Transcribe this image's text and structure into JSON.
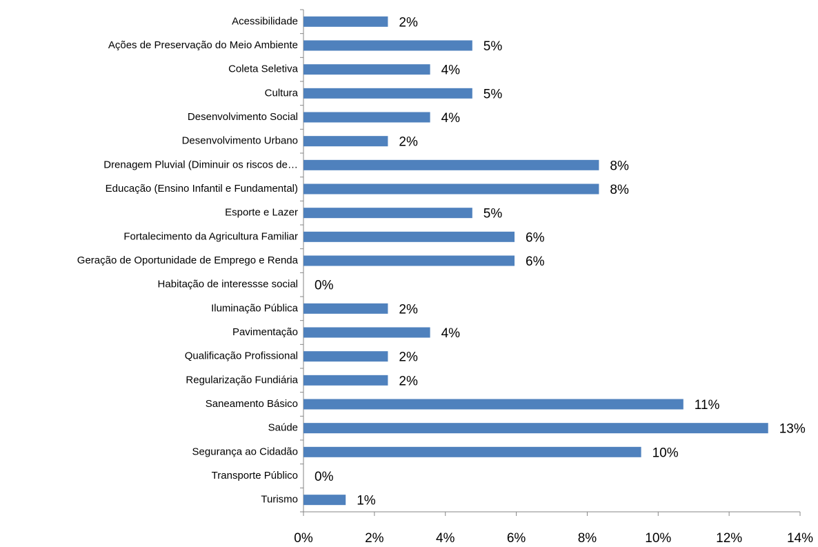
{
  "chart_data": {
    "type": "hbar",
    "categories": [
      "Acessibilidade",
      "Ações de Preservação do Meio Ambiente",
      "Coleta Seletiva",
      "Cultura",
      "Desenvolvimento Social",
      "Desenvolvimento Urbano",
      "Drenagem Pluvial (Diminuir os riscos de…",
      "Educação (Ensino Infantil e Fundamental)",
      "Esporte e Lazer",
      "Fortalecimento da Agricultura Familiar",
      "Geração de Oportunidade de Emprego e Renda",
      "Habitação de interessse social",
      "Iluminação Pública",
      "Pavimentação",
      "Qualificação Profissional",
      "Regularização Fundiária",
      "Saneamento Básico",
      "Saúde",
      "Segurança ao Cidadão",
      "Transporte Público",
      "Turismo"
    ],
    "values": [
      2.38,
      4.76,
      3.57,
      4.76,
      3.57,
      2.38,
      8.33,
      8.33,
      4.76,
      5.95,
      5.95,
      0,
      2.38,
      3.57,
      2.38,
      2.38,
      10.71,
      13.1,
      9.52,
      0,
      1.19
    ],
    "value_labels": [
      "2%",
      "5%",
      "4%",
      "5%",
      "4%",
      "2%",
      "8%",
      "8%",
      "5%",
      "6%",
      "6%",
      "0%",
      "2%",
      "4%",
      "2%",
      "2%",
      "11%",
      "13%",
      "10%",
      "0%",
      "1%"
    ],
    "color": "#4f81bd",
    "xlim": [
      0,
      14
    ],
    "xticks": [
      {
        "value": 0,
        "label": "0%"
      },
      {
        "value": 2,
        "label": "2%"
      },
      {
        "value": 4,
        "label": "4%"
      },
      {
        "value": 6,
        "label": "6%"
      },
      {
        "value": 8,
        "label": "8%"
      },
      {
        "value": 10,
        "label": "10%"
      },
      {
        "value": 12,
        "label": "12%"
      },
      {
        "value": 14,
        "label": "14%"
      }
    ],
    "grid": false
  }
}
